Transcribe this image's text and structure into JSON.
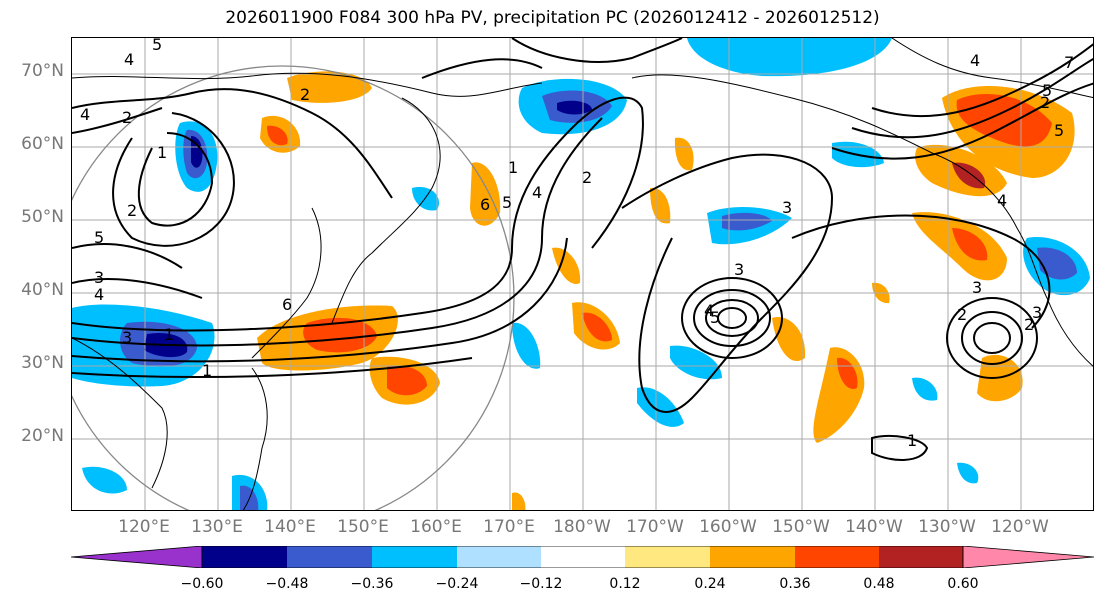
{
  "title": "2026011900 F084 300 hPa PV, precipitation PC (2026012412 - 2026012512)",
  "lat_labels": [
    "70°N",
    "60°N",
    "50°N",
    "40°N",
    "30°N",
    "20°N"
  ],
  "lon_labels": [
    "120°E",
    "130°E",
    "140°E",
    "150°E",
    "160°E",
    "170°E",
    "180°W",
    "170°W",
    "160°W",
    "150°W",
    "140°W",
    "130°W",
    "120°W"
  ],
  "colorbar": {
    "ticks": [
      "−0.60",
      "−0.48",
      "−0.36",
      "−0.24",
      "−0.12",
      "0.12",
      "0.24",
      "0.36",
      "0.48",
      "0.60"
    ],
    "colors": [
      "#9932cc",
      "#00008b",
      "#3a5bcd",
      "#00bfff",
      "#b0e0ff",
      "#ffffff",
      "#ffe880",
      "#ffa500",
      "#ff4500",
      "#b22222",
      "#ff88aa"
    ]
  },
  "contour_labels": [
    "4",
    "5",
    "2",
    "1",
    "4",
    "2",
    "6",
    "5",
    "1",
    "2",
    "4",
    "1",
    "3",
    "4",
    "3",
    "5",
    "3",
    "1",
    "2",
    "3",
    "5",
    "2",
    "6",
    "5",
    "4",
    "2",
    "4",
    "3",
    "5",
    "4",
    "1",
    "7",
    "3",
    "2"
  ],
  "colors": {
    "ocean": "#ffffff",
    "grid": "#aaaaaa",
    "axis_label": "#777777"
  }
}
